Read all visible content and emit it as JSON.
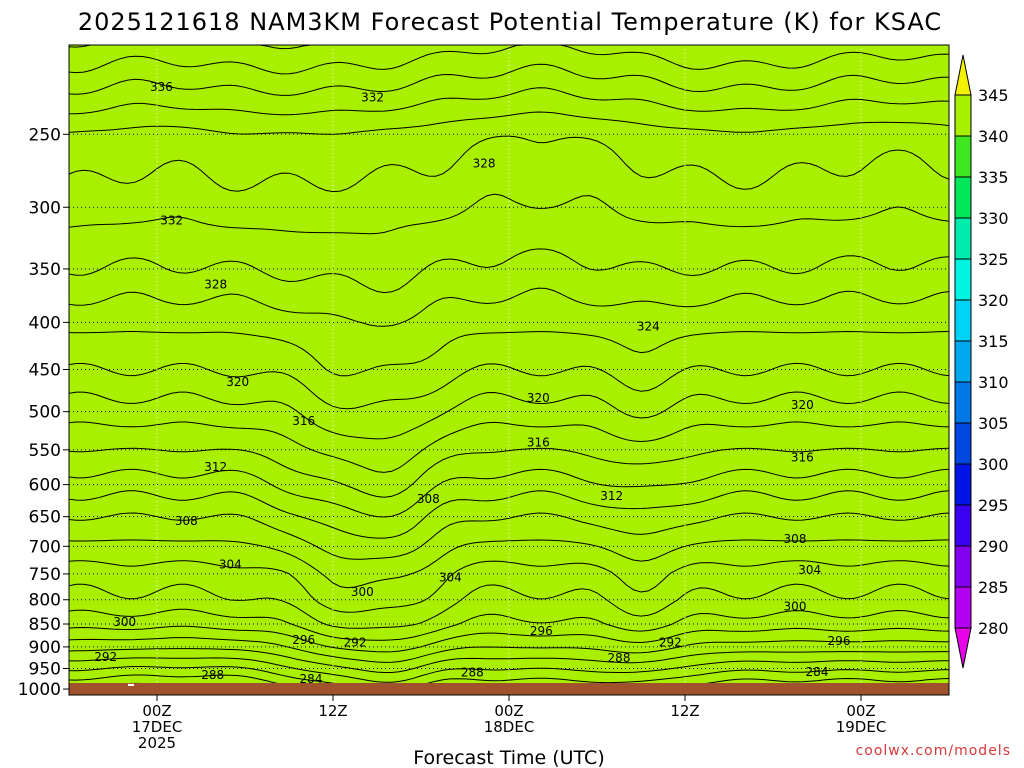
{
  "chart_data": {
    "type": "heatmap",
    "title": "2025121618 NAM3KM Forecast Potential Temperature (K) for KSAC",
    "xlabel": "Forecast Time (UTC)",
    "ylabel": "",
    "x_range_hours": [
      -6,
      54
    ],
    "y_range_hPa": [
      1015,
      200
    ],
    "y_ticks": [
      250,
      300,
      350,
      400,
      450,
      500,
      550,
      600,
      650,
      700,
      750,
      800,
      850,
      900,
      950,
      1000
    ],
    "x_ticks": [
      {
        "hour": 0,
        "lines": [
          "00Z",
          "17DEC",
          "2025"
        ]
      },
      {
        "hour": 12,
        "lines": [
          "12Z"
        ]
      },
      {
        "hour": 24,
        "lines": [
          "00Z",
          "18DEC"
        ]
      },
      {
        "hour": 36,
        "lines": [
          "12Z"
        ]
      },
      {
        "hour": 48,
        "lines": [
          "00Z",
          "19DEC"
        ]
      }
    ],
    "colorbar_levels": [
      280,
      285,
      290,
      295,
      300,
      305,
      310,
      315,
      320,
      325,
      330,
      335,
      340,
      345
    ],
    "colors": [
      "#e800e8",
      "#b400f0",
      "#8200f0",
      "#3c00f0",
      "#0014e6",
      "#0046e1",
      "#0078e6",
      "#00a8ee",
      "#00d2f8",
      "#00f4e2",
      "#00ecab",
      "#00e85a",
      "#3ee820",
      "#a8f000",
      "#f2f200"
    ],
    "ground_color": "#a0522d",
    "contour_interval_K": 2,
    "contour_labels": [
      {
        "value": 336,
        "hour": 0.3,
        "pressure": 222
      },
      {
        "value": 332,
        "hour": 14.7,
        "pressure": 228
      },
      {
        "value": 328,
        "hour": 22.3,
        "pressure": 269
      },
      {
        "value": 332,
        "hour": 1.0,
        "pressure": 310
      },
      {
        "value": 328,
        "hour": 4.0,
        "pressure": 364
      },
      {
        "value": 324,
        "hour": 33.5,
        "pressure": 404
      },
      {
        "value": 320,
        "hour": 5.5,
        "pressure": 464
      },
      {
        "value": 320,
        "hour": 26.0,
        "pressure": 483
      },
      {
        "value": 320,
        "hour": 44.0,
        "pressure": 492
      },
      {
        "value": 316,
        "hour": 10.0,
        "pressure": 512
      },
      {
        "value": 316,
        "hour": 26.0,
        "pressure": 540
      },
      {
        "value": 316,
        "hour": 44.0,
        "pressure": 561
      },
      {
        "value": 312,
        "hour": 4.0,
        "pressure": 574
      },
      {
        "value": 312,
        "hour": 31.0,
        "pressure": 617
      },
      {
        "value": 308,
        "hour": 18.5,
        "pressure": 622
      },
      {
        "value": 308,
        "hour": 2.0,
        "pressure": 657
      },
      {
        "value": 308,
        "hour": 43.5,
        "pressure": 687
      },
      {
        "value": 304,
        "hour": 5.0,
        "pressure": 733
      },
      {
        "value": 304,
        "hour": 20.0,
        "pressure": 757
      },
      {
        "value": 304,
        "hour": 44.5,
        "pressure": 743
      },
      {
        "value": 300,
        "hour": 14.0,
        "pressure": 785
      },
      {
        "value": 300,
        "hour": 43.5,
        "pressure": 814
      },
      {
        "value": 300,
        "hour": -2.2,
        "pressure": 846
      },
      {
        "value": 296,
        "hour": 26.2,
        "pressure": 865
      },
      {
        "value": 296,
        "hour": 10.0,
        "pressure": 885
      },
      {
        "value": 292,
        "hour": 13.5,
        "pressure": 890
      },
      {
        "value": 292,
        "hour": 35.0,
        "pressure": 890
      },
      {
        "value": 296,
        "hour": 46.5,
        "pressure": 887
      },
      {
        "value": 292,
        "hour": -3.5,
        "pressure": 923
      },
      {
        "value": 288,
        "hour": 31.5,
        "pressure": 925
      },
      {
        "value": 288,
        "hour": 3.8,
        "pressure": 965
      },
      {
        "value": 288,
        "hour": 21.5,
        "pressure": 960
      },
      {
        "value": 284,
        "hour": 45.0,
        "pressure": 958
      },
      {
        "value": 284,
        "hour": 10.5,
        "pressure": 975
      }
    ]
  },
  "credit": "coolwx.com/models"
}
